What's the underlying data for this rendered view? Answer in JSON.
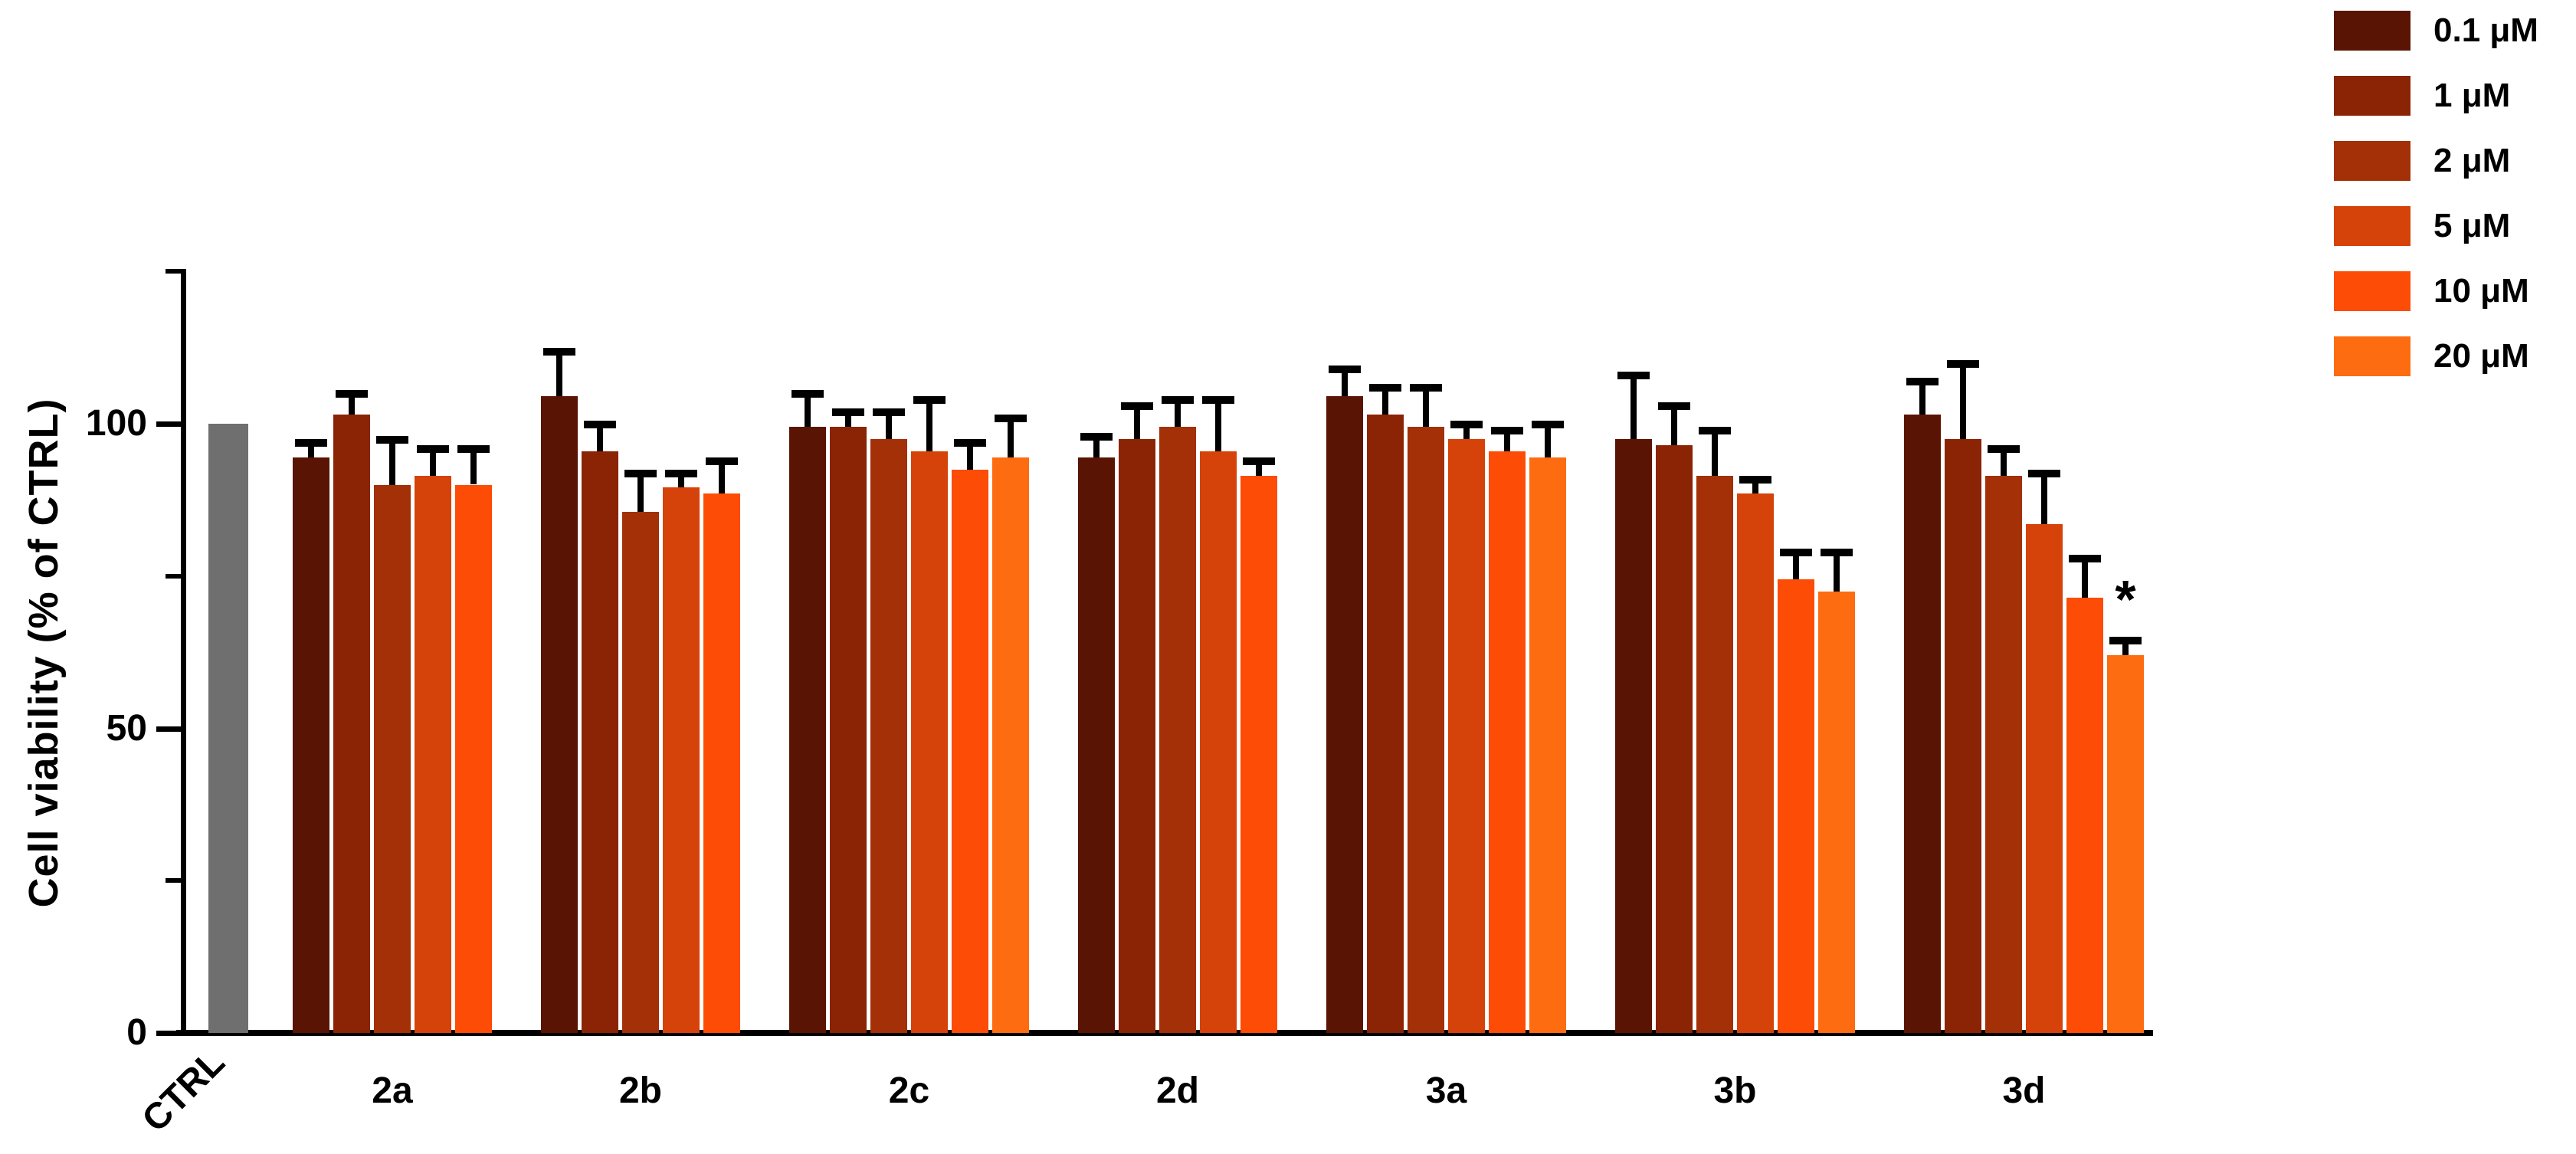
{
  "chart_data": {
    "type": "bar",
    "title": "",
    "ylabel": "Cell viability (% of CTRL)",
    "xlabel": "",
    "ylim": [
      0,
      125
    ],
    "yticks_labeled": [
      0,
      50,
      100
    ],
    "yticks_minor": [
      25,
      75,
      125
    ],
    "grid": false,
    "legend_position": "top-right",
    "legend": [
      {
        "label": "0.1 μM",
        "color": "#5A1404"
      },
      {
        "label": "1 μM",
        "color": "#8A2404"
      },
      {
        "label": "2 μM",
        "color": "#A33007"
      },
      {
        "label": "5 μM",
        "color": "#D5420A"
      },
      {
        "label": "10 μM",
        "color": "#FC4C06"
      },
      {
        "label": "20 μM",
        "color": "#FD6C10"
      }
    ],
    "control": {
      "label": "CTRL",
      "value": 100,
      "color": "#6F6F6F",
      "error": 0
    },
    "groups": [
      {
        "label": "2a",
        "series": [
          "0.1 μM",
          "1 μM",
          "2 μM",
          "5 μM",
          "10 μM"
        ],
        "values": [
          94.5,
          101.5,
          90,
          91.5,
          90
        ],
        "errors": [
          2.5,
          3.5,
          7.5,
          4.5,
          6
        ]
      },
      {
        "label": "2b",
        "series": [
          "0.1 μM",
          "1 μM",
          "2 μM",
          "5 μM",
          "10 μM"
        ],
        "values": [
          104.5,
          95.5,
          85.5,
          89.5,
          88.5
        ],
        "errors": [
          7.5,
          4.5,
          6.5,
          2.5,
          5.5
        ]
      },
      {
        "label": "2c",
        "series": [
          "0.1 μM",
          "1 μM",
          "2 μM",
          "5 μM",
          "10 μM",
          "20 μM"
        ],
        "values": [
          99.5,
          99.5,
          97.5,
          95.5,
          92.5,
          94.5
        ],
        "errors": [
          5.5,
          2.5,
          4.5,
          8.5,
          4.5,
          6.5
        ]
      },
      {
        "label": "2d",
        "series": [
          "0.1 μM",
          "1 μM",
          "2 μM",
          "5 μM",
          "10 μM"
        ],
        "values": [
          94.5,
          97.5,
          99.5,
          95.5,
          91.5
        ],
        "errors": [
          3.5,
          5.5,
          4.5,
          8.5,
          2.5
        ]
      },
      {
        "label": "3a",
        "series": [
          "0.1 μM",
          "1 μM",
          "2 μM",
          "5 μM",
          "10 μM",
          "20 μM"
        ],
        "values": [
          104.5,
          101.5,
          99.5,
          97.5,
          95.5,
          94.5
        ],
        "errors": [
          4.5,
          4.5,
          6.5,
          2.5,
          3.5,
          5.5
        ]
      },
      {
        "label": "3b",
        "series": [
          "0.1 μM",
          "1 μM",
          "2 μM",
          "5 μM",
          "10 μM",
          "20 μM"
        ],
        "values": [
          97.5,
          96.5,
          91.5,
          88.5,
          74.5,
          72.5
        ],
        "errors": [
          10.5,
          6.5,
          7.5,
          2.5,
          4.5,
          6.5
        ]
      },
      {
        "label": "3d",
        "series": [
          "0.1 μM",
          "1 μM",
          "2 μM",
          "5 μM",
          "10 μM",
          "20 μM"
        ],
        "values": [
          101.5,
          97.5,
          91.5,
          83.5,
          71.5,
          62
        ],
        "errors": [
          5.5,
          12.5,
          4.5,
          8.5,
          6.5,
          2.5
        ],
        "annotations": [
          null,
          null,
          null,
          null,
          null,
          "*"
        ]
      }
    ]
  }
}
